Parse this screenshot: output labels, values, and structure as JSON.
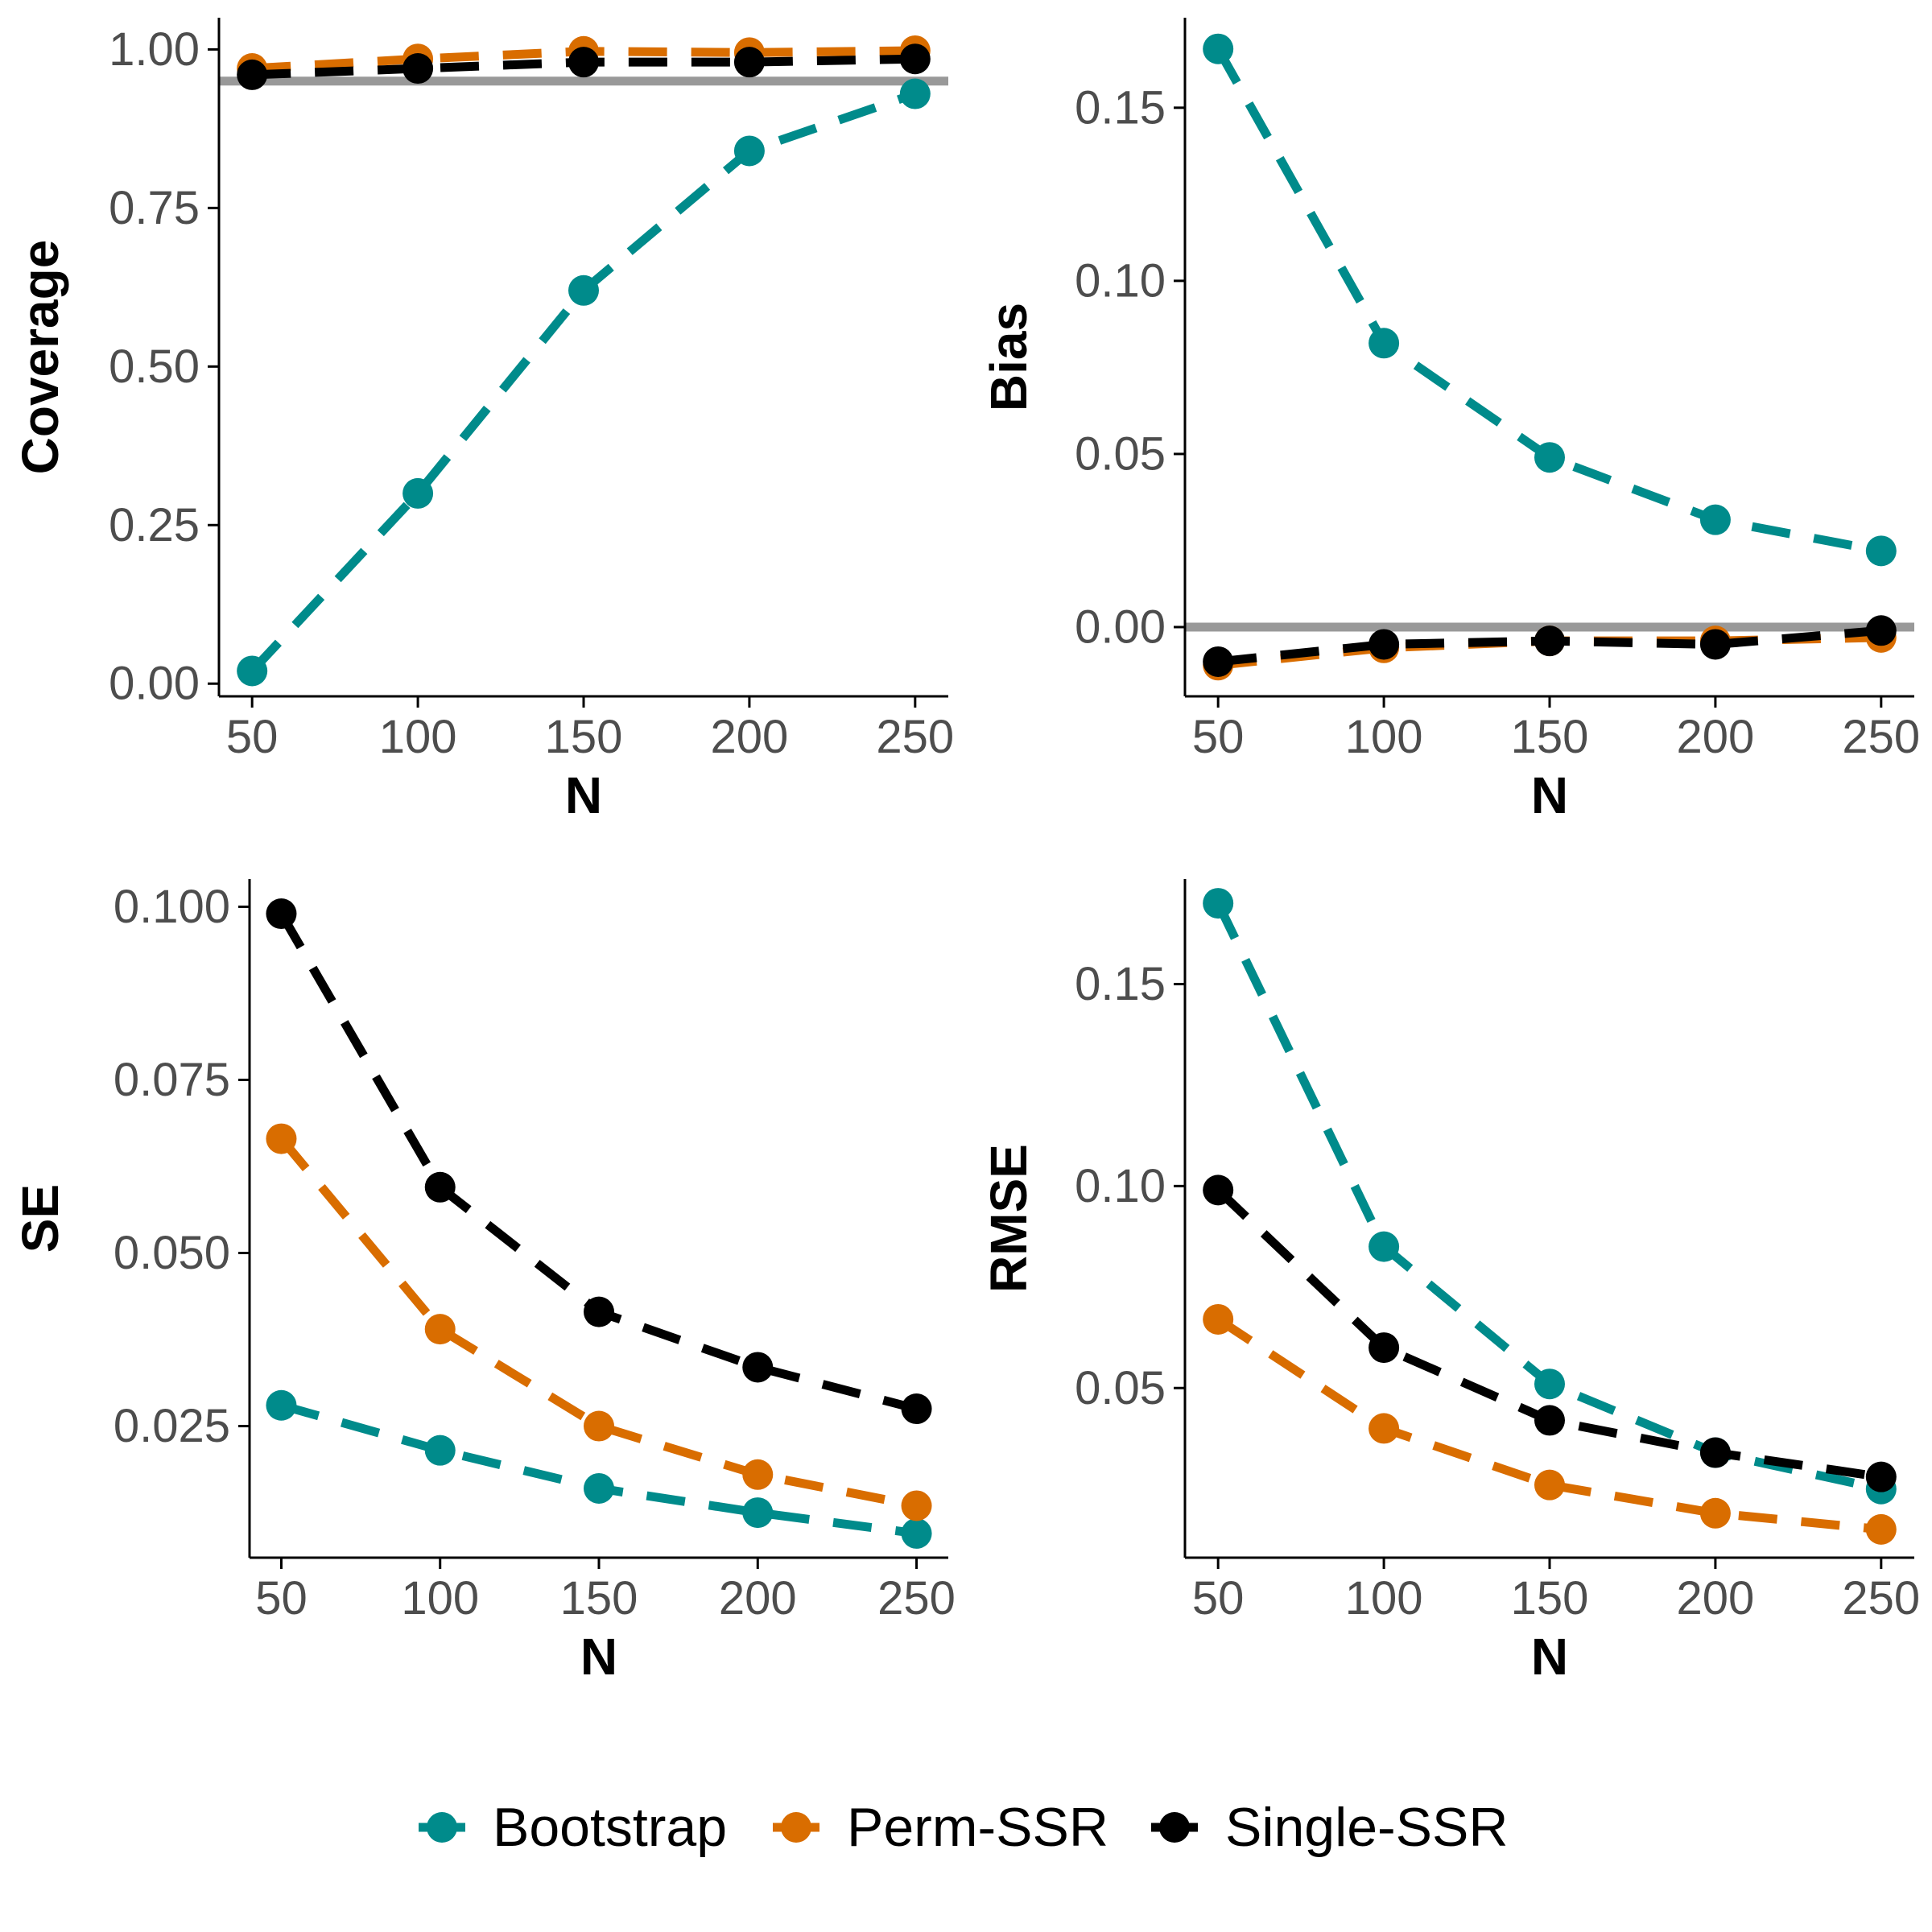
{
  "colors": {
    "Bootstrap": "#008b8b",
    "Perm-SSR": "#d96d00",
    "Single-SSR": "#000000",
    "reference_line": "#999999",
    "axis": "#000000",
    "tick_text": "#4d4d4d"
  },
  "legend": {
    "position": "bottom",
    "items": [
      "Bootstrap",
      "Perm-SSR",
      "Single-SSR"
    ]
  },
  "chart_data": [
    {
      "type": "line",
      "xlabel": "N",
      "ylabel": "Coverage",
      "x": [
        50,
        100,
        150,
        200,
        250
      ],
      "xlim": [
        40,
        260
      ],
      "ylim": [
        -0.02,
        1.05
      ],
      "yticks": [
        0.0,
        0.25,
        0.5,
        0.75,
        1.0
      ],
      "ytick_labels": [
        "0.00",
        "0.25",
        "0.50",
        "0.75",
        "1.00"
      ],
      "xticks": [
        50,
        100,
        150,
        200,
        250
      ],
      "xtick_labels": [
        "50",
        "100",
        "150",
        "200",
        "250"
      ],
      "hline": 0.95,
      "grid": false,
      "series": [
        {
          "name": "Bootstrap",
          "values": [
            0.02,
            0.3,
            0.62,
            0.84,
            0.93
          ]
        },
        {
          "name": "Perm-SSR",
          "values": [
            0.97,
            0.985,
            0.997,
            0.995,
            0.998
          ]
        },
        {
          "name": "Single-SSR",
          "values": [
            0.96,
            0.97,
            0.98,
            0.98,
            0.985
          ]
        }
      ]
    },
    {
      "type": "line",
      "xlabel": "N",
      "ylabel": "Bias",
      "x": [
        50,
        100,
        150,
        200,
        250
      ],
      "xlim": [
        40,
        260
      ],
      "ylim": [
        -0.02,
        0.176
      ],
      "yticks": [
        0.0,
        0.05,
        0.1,
        0.15
      ],
      "ytick_labels": [
        "0.00",
        "0.05",
        "0.10",
        "0.15"
      ],
      "xticks": [
        50,
        100,
        150,
        200,
        250
      ],
      "xtick_labels": [
        "50",
        "100",
        "150",
        "200",
        "250"
      ],
      "hline": 0.0,
      "grid": false,
      "series": [
        {
          "name": "Bootstrap",
          "values": [
            0.167,
            0.082,
            0.049,
            0.031,
            0.022
          ]
        },
        {
          "name": "Perm-SSR",
          "values": [
            -0.011,
            -0.006,
            -0.004,
            -0.004,
            -0.003
          ]
        },
        {
          "name": "Single-SSR",
          "values": [
            -0.01,
            -0.005,
            -0.004,
            -0.005,
            -0.001
          ]
        }
      ]
    },
    {
      "type": "line",
      "xlabel": "N",
      "ylabel": "SE",
      "x": [
        50,
        100,
        150,
        200,
        250
      ],
      "xlim": [
        40,
        260
      ],
      "ylim": [
        0.006,
        0.104
      ],
      "yticks": [
        0.025,
        0.05,
        0.075,
        0.1
      ],
      "ytick_labels": [
        "0.025",
        "0.050",
        "0.075",
        "0.100"
      ],
      "xticks": [
        50,
        100,
        150,
        200,
        250
      ],
      "xtick_labels": [
        "50",
        "100",
        "150",
        "200",
        "250"
      ],
      "grid": false,
      "series": [
        {
          "name": "Bootstrap",
          "values": [
            0.028,
            0.0215,
            0.016,
            0.0125,
            0.0095
          ]
        },
        {
          "name": "Perm-SSR",
          "values": [
            0.0665,
            0.039,
            0.025,
            0.018,
            0.0135
          ]
        },
        {
          "name": "Single-SSR",
          "values": [
            0.099,
            0.0595,
            0.0415,
            0.0335,
            0.0275
          ]
        }
      ]
    },
    {
      "type": "line",
      "xlabel": "N",
      "ylabel": "RMSE",
      "x": [
        50,
        100,
        150,
        200,
        250
      ],
      "xlim": [
        40,
        260
      ],
      "ylim": [
        0.008,
        0.176
      ],
      "yticks": [
        0.05,
        0.1,
        0.15
      ],
      "ytick_labels": [
        "0.05",
        "0.10",
        "0.15"
      ],
      "xticks": [
        50,
        100,
        150,
        200,
        250
      ],
      "xtick_labels": [
        "50",
        "100",
        "150",
        "200",
        "250"
      ],
      "grid": false,
      "series": [
        {
          "name": "Bootstrap",
          "values": [
            0.17,
            0.085,
            0.051,
            0.034,
            0.025
          ]
        },
        {
          "name": "Perm-SSR",
          "values": [
            0.067,
            0.04,
            0.026,
            0.019,
            0.015
          ]
        },
        {
          "name": "Single-SSR",
          "values": [
            0.099,
            0.06,
            0.042,
            0.034,
            0.028
          ]
        }
      ]
    }
  ]
}
